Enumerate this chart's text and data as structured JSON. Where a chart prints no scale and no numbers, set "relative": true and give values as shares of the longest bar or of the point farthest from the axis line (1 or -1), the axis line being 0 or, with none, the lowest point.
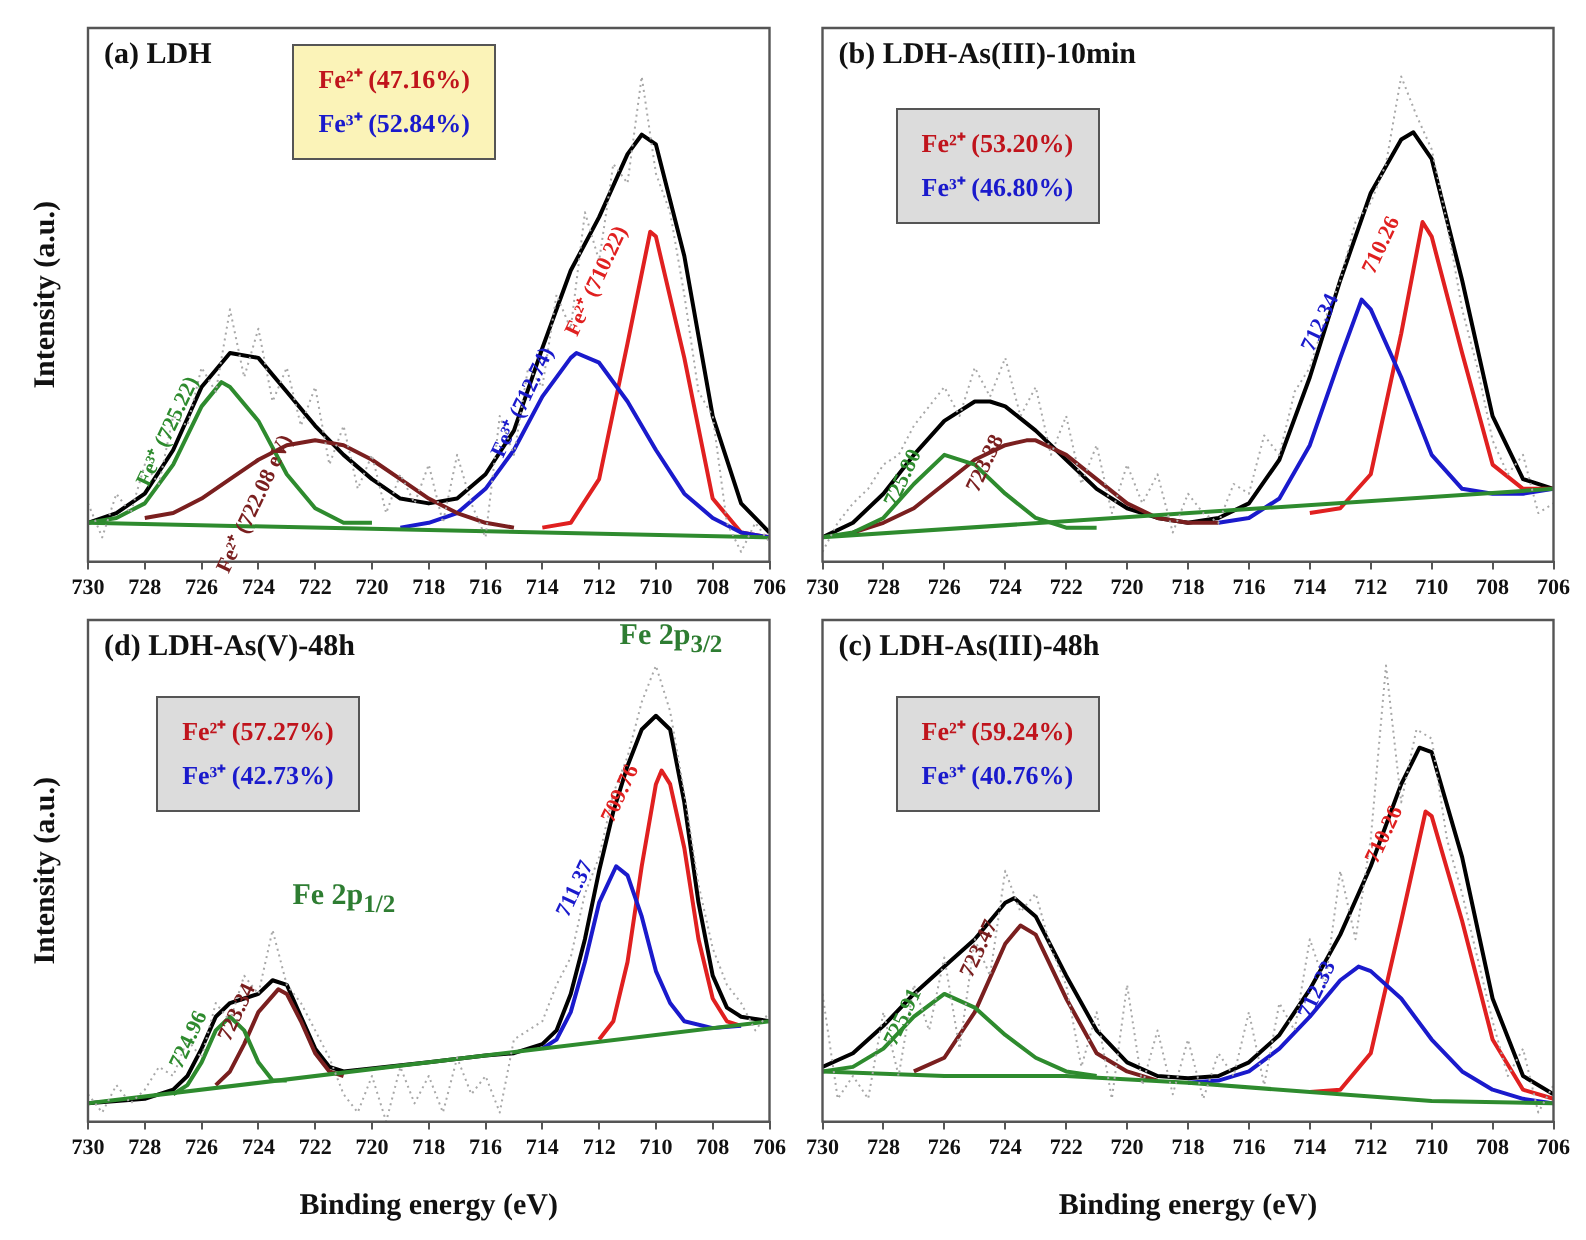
{
  "chart_data": [
    {
      "type": "line",
      "title": "(a) LDH",
      "ylabel": "Intensity (a.u.)",
      "relative": true,
      "xlim": [
        730,
        706
      ],
      "xticks": [
        730,
        728,
        726,
        724,
        722,
        720,
        718,
        716,
        714,
        712,
        710,
        708,
        706
      ],
      "marker": "none",
      "line_style": "solid",
      "annotations": [
        "Fe²⁺ (47.16%)",
        "Fe³⁺ (52.84%)"
      ],
      "series": [
        {
          "color": "#a8a8a8",
          "line_style": "dotted",
          "x": [
            730,
            729.5,
            729,
            728.5,
            728,
            727.5,
            727,
            726.5,
            726,
            725.5,
            725,
            724.5,
            724,
            723.5,
            723,
            722.5,
            722,
            721.5,
            721,
            720.5,
            720,
            719.5,
            719,
            718.5,
            718,
            717.5,
            717,
            716.5,
            716,
            715.5,
            715,
            714.5,
            714,
            713.5,
            713,
            712.5,
            712,
            711.5,
            711,
            710.5,
            710,
            709.5,
            709,
            708.5,
            708,
            707.5,
            707,
            706.5,
            706
          ],
          "values": [
            0.12,
            0.05,
            0.14,
            0.1,
            0.2,
            0.16,
            0.3,
            0.28,
            0.4,
            0.35,
            0.52,
            0.38,
            0.48,
            0.33,
            0.4,
            0.28,
            0.36,
            0.2,
            0.28,
            0.15,
            0.22,
            0.1,
            0.18,
            0.12,
            0.2,
            0.08,
            0.22,
            0.12,
            0.05,
            0.3,
            0.22,
            0.4,
            0.36,
            0.55,
            0.48,
            0.72,
            0.62,
            0.82,
            0.78,
            1.0,
            0.8,
            0.72,
            0.55,
            0.35,
            0.3,
            0.08,
            0.02,
            0.08,
            0.04
          ]
        },
        {
          "color": "#2e8b2e",
          "x": [
            730,
            706
          ],
          "values": [
            0.08,
            0.05
          ]
        },
        {
          "name": "Fe³⁺ (725.22)",
          "color": "#2e8b2e",
          "x": [
            730,
            729,
            728,
            727,
            726,
            725.3,
            725,
            724,
            723,
            722,
            721,
            720
          ],
          "values": [
            0.08,
            0.09,
            0.12,
            0.2,
            0.32,
            0.37,
            0.36,
            0.29,
            0.18,
            0.11,
            0.08,
            0.08
          ]
        },
        {
          "name": "Fe²⁺ (722.08 eV)",
          "color": "#7a1f1f",
          "x": [
            728,
            727,
            726,
            725,
            724,
            723,
            722,
            721,
            720,
            719,
            718,
            717,
            716,
            715
          ],
          "values": [
            0.09,
            0.1,
            0.13,
            0.17,
            0.21,
            0.24,
            0.25,
            0.24,
            0.21,
            0.17,
            0.13,
            0.1,
            0.08,
            0.07
          ]
        },
        {
          "name": "Fe³⁺ (712.74)",
          "color": "#1a1acc",
          "x": [
            719,
            718,
            717,
            716,
            715,
            714,
            713,
            712.8,
            712,
            711,
            710,
            709,
            708,
            707,
            706
          ],
          "values": [
            0.07,
            0.08,
            0.1,
            0.15,
            0.23,
            0.34,
            0.42,
            0.43,
            0.41,
            0.33,
            0.23,
            0.14,
            0.09,
            0.06,
            0.05
          ]
        },
        {
          "name": "Fe²⁺ (710.22)",
          "color": "#e02020",
          "x": [
            714,
            713,
            712,
            711,
            710.2,
            710,
            709,
            708,
            707,
            706
          ],
          "values": [
            0.07,
            0.08,
            0.17,
            0.45,
            0.68,
            0.67,
            0.42,
            0.13,
            0.06,
            0.05
          ]
        },
        {
          "color": "#000000",
          "x": [
            730,
            729,
            728,
            727,
            726,
            725,
            724,
            723,
            722,
            721,
            720,
            719,
            718,
            717,
            716,
            715,
            714,
            713,
            712,
            711,
            710.5,
            710,
            709,
            708,
            707,
            706
          ],
          "values": [
            0.08,
            0.1,
            0.14,
            0.23,
            0.36,
            0.43,
            0.42,
            0.35,
            0.28,
            0.22,
            0.17,
            0.13,
            0.12,
            0.13,
            0.18,
            0.27,
            0.44,
            0.6,
            0.71,
            0.84,
            0.88,
            0.86,
            0.63,
            0.3,
            0.12,
            0.06
          ]
        }
      ]
    },
    {
      "type": "line",
      "title": "(b) LDH-As(III)-10min",
      "relative": true,
      "xlim": [
        730,
        706
      ],
      "xticks": [
        730,
        728,
        726,
        724,
        722,
        720,
        718,
        716,
        714,
        712,
        710,
        708,
        706
      ],
      "marker": "none",
      "line_style": "solid",
      "annotations": [
        "Fe²⁺ (53.20%)",
        "Fe³⁺ (46.80%)"
      ],
      "series": [
        {
          "color": "#a8a8a8",
          "line_style": "dotted",
          "x": [
            730,
            729.5,
            729,
            728.5,
            728,
            727.5,
            727,
            726.5,
            726,
            725.5,
            725,
            724.5,
            724,
            723.5,
            723,
            722.5,
            722,
            721.5,
            721,
            720.5,
            720,
            719.5,
            719,
            718.5,
            718,
            717.5,
            717,
            716.5,
            716,
            715.5,
            715,
            714.5,
            714,
            713.5,
            713,
            712.5,
            712,
            711.5,
            711,
            710.5,
            710,
            709.5,
            709,
            708.5,
            708,
            707.5,
            707,
            706.5,
            706
          ],
          "values": [
            0.02,
            0.08,
            0.12,
            0.15,
            0.2,
            0.22,
            0.28,
            0.32,
            0.36,
            0.3,
            0.4,
            0.34,
            0.42,
            0.3,
            0.36,
            0.22,
            0.3,
            0.16,
            0.24,
            0.1,
            0.2,
            0.12,
            0.18,
            0.06,
            0.14,
            0.1,
            0.08,
            0.16,
            0.14,
            0.26,
            0.22,
            0.35,
            0.4,
            0.5,
            0.58,
            0.7,
            0.74,
            0.82,
            1.0,
            0.92,
            0.85,
            0.7,
            0.52,
            0.4,
            0.25,
            0.18,
            0.22,
            0.1,
            0.12
          ]
        },
        {
          "color": "#2e8b2e",
          "x": [
            730,
            706
          ],
          "values": [
            0.05,
            0.15
          ]
        },
        {
          "name": "725.80",
          "color": "#2e8b2e",
          "x": [
            730,
            729,
            728,
            727,
            726,
            725,
            724,
            723,
            722,
            721
          ],
          "values": [
            0.05,
            0.06,
            0.09,
            0.16,
            0.22,
            0.2,
            0.14,
            0.09,
            0.07,
            0.07
          ]
        },
        {
          "name": "723.38",
          "color": "#7a1f1f",
          "x": [
            729,
            728,
            727,
            726,
            725,
            724,
            723.3,
            723,
            722,
            721,
            720,
            719,
            718,
            717
          ],
          "values": [
            0.06,
            0.08,
            0.11,
            0.16,
            0.21,
            0.24,
            0.25,
            0.25,
            0.22,
            0.17,
            0.12,
            0.09,
            0.08,
            0.08
          ]
        },
        {
          "name": "712.34",
          "color": "#1a1acc",
          "x": [
            717,
            716,
            715,
            714,
            713,
            712.3,
            712,
            711,
            710,
            709,
            708,
            707,
            706
          ],
          "values": [
            0.08,
            0.09,
            0.13,
            0.24,
            0.42,
            0.54,
            0.52,
            0.38,
            0.22,
            0.15,
            0.14,
            0.14,
            0.15
          ]
        },
        {
          "name": "710.26",
          "color": "#e02020",
          "x": [
            714,
            713,
            712,
            711,
            710.3,
            710,
            709,
            708,
            707,
            706
          ],
          "values": [
            0.1,
            0.11,
            0.18,
            0.47,
            0.7,
            0.67,
            0.43,
            0.2,
            0.15,
            0.15
          ]
        },
        {
          "color": "#000000",
          "x": [
            730,
            729,
            728,
            727,
            726,
            725,
            724.5,
            724,
            723,
            722,
            721,
            720,
            719,
            718,
            717,
            716,
            715,
            714,
            713,
            712,
            711,
            710.6,
            710,
            709,
            708,
            707,
            706
          ],
          "values": [
            0.05,
            0.08,
            0.14,
            0.22,
            0.29,
            0.33,
            0.33,
            0.32,
            0.27,
            0.21,
            0.15,
            0.11,
            0.09,
            0.08,
            0.09,
            0.12,
            0.21,
            0.38,
            0.58,
            0.76,
            0.87,
            0.885,
            0.83,
            0.58,
            0.3,
            0.17,
            0.15
          ]
        }
      ]
    },
    {
      "type": "line",
      "title": "(d) LDH-As(V)-48h",
      "xlabel": "Binding energy (eV)",
      "ylabel": "Intensity (a.u.)",
      "relative": true,
      "xlim": [
        730,
        706
      ],
      "xticks": [
        730,
        728,
        726,
        724,
        722,
        720,
        718,
        716,
        714,
        712,
        710,
        708,
        706
      ],
      "marker": "none",
      "line_style": "solid",
      "annotations": [
        "Fe²⁺ (57.27%)",
        "Fe³⁺ (42.73%)",
        "Fe 2p$_{3/2}$",
        "Fe 2p$_{1/2}$"
      ],
      "series": [
        {
          "color": "#a8a8a8",
          "line_style": "dotted",
          "x": [
            730,
            729.5,
            729,
            728.5,
            728,
            727.5,
            727,
            726.5,
            726,
            725.5,
            725,
            724.5,
            724,
            723.5,
            723,
            722.5,
            722,
            721.5,
            721,
            720.5,
            720,
            719.5,
            719,
            718.5,
            718,
            717.5,
            717,
            716.5,
            716,
            715.5,
            715,
            714.5,
            714,
            713.5,
            713,
            712.5,
            712,
            711.5,
            711,
            710.5,
            710,
            709.5,
            709,
            708.5,
            708,
            707.5,
            707,
            706.5,
            706
          ],
          "values": [
            0.06,
            0.02,
            0.08,
            0.04,
            0.07,
            0.12,
            0.1,
            0.18,
            0.14,
            0.26,
            0.22,
            0.32,
            0.28,
            0.42,
            0.3,
            0.26,
            0.2,
            0.14,
            0.06,
            0.02,
            0.1,
            0.0,
            0.12,
            0.04,
            0.1,
            0.02,
            0.14,
            0.06,
            0.1,
            0.02,
            0.18,
            0.2,
            0.22,
            0.3,
            0.36,
            0.5,
            0.58,
            0.72,
            0.8,
            0.92,
            1.0,
            0.9,
            0.72,
            0.52,
            0.38,
            0.3,
            0.26,
            0.2,
            0.24
          ]
        },
        {
          "color": "#2e8b2e",
          "x": [
            730,
            706
          ],
          "values": [
            0.04,
            0.22
          ]
        },
        {
          "name": "724.96",
          "color": "#2e8b2e",
          "x": [
            727,
            726.5,
            726,
            725.5,
            725,
            724.5,
            724,
            723.5,
            723
          ],
          "values": [
            0.06,
            0.08,
            0.13,
            0.2,
            0.23,
            0.2,
            0.13,
            0.09,
            0.09
          ]
        },
        {
          "name": "723.34",
          "color": "#7a1f1f",
          "x": [
            725.5,
            725,
            724.5,
            724,
            723.3,
            723,
            722.5,
            722,
            721.5,
            721
          ],
          "values": [
            0.08,
            0.11,
            0.17,
            0.24,
            0.29,
            0.28,
            0.22,
            0.15,
            0.11,
            0.1
          ]
        },
        {
          "name": "711.37",
          "color": "#1a1acc",
          "x": [
            714,
            713.5,
            713,
            712.5,
            712,
            711.4,
            711,
            710.5,
            710,
            709.5,
            709,
            708,
            707
          ],
          "values": [
            0.16,
            0.18,
            0.24,
            0.35,
            0.48,
            0.56,
            0.54,
            0.45,
            0.33,
            0.26,
            0.22,
            0.205,
            0.21
          ]
        },
        {
          "name": "709.76",
          "color": "#e02020",
          "x": [
            712,
            711.5,
            711,
            710.5,
            710,
            709.8,
            709.5,
            709,
            708.5,
            708,
            707.5,
            707
          ],
          "values": [
            0.18,
            0.22,
            0.35,
            0.56,
            0.74,
            0.77,
            0.74,
            0.6,
            0.4,
            0.27,
            0.22,
            0.21
          ]
        },
        {
          "color": "#000000",
          "x": [
            730,
            728,
            727,
            726.5,
            726,
            725.5,
            725,
            724.5,
            724,
            723.5,
            723,
            722.5,
            722,
            721.5,
            721,
            718,
            716,
            715,
            714,
            713.5,
            713,
            712.5,
            712,
            711.5,
            711,
            710.5,
            710,
            709.5,
            709,
            708.5,
            708,
            707.5,
            707,
            706
          ],
          "values": [
            0.04,
            0.05,
            0.07,
            0.1,
            0.16,
            0.23,
            0.26,
            0.27,
            0.28,
            0.31,
            0.3,
            0.23,
            0.16,
            0.12,
            0.11,
            0.13,
            0.145,
            0.15,
            0.17,
            0.2,
            0.28,
            0.4,
            0.55,
            0.68,
            0.78,
            0.86,
            0.89,
            0.86,
            0.7,
            0.48,
            0.32,
            0.25,
            0.23,
            0.22
          ]
        }
      ]
    },
    {
      "type": "line",
      "title": "(c) LDH-As(III)-48h",
      "xlabel": "Binding energy (eV)",
      "relative": true,
      "xlim": [
        730,
        706
      ],
      "xticks": [
        730,
        728,
        726,
        724,
        722,
        720,
        718,
        716,
        714,
        712,
        710,
        708,
        706
      ],
      "marker": "none",
      "line_style": "solid",
      "annotations": [
        "Fe²⁺ (59.24%)",
        "Fe³⁺ (40.76%)"
      ],
      "series": [
        {
          "color": "#a8a8a8",
          "line_style": "dotted",
          "x": [
            730,
            729.5,
            729,
            728.5,
            728,
            727.5,
            727,
            726.5,
            726,
            725.5,
            725,
            724.5,
            724,
            723.5,
            723,
            722.5,
            722,
            721.5,
            721,
            720.5,
            720,
            719.5,
            719,
            718.5,
            718,
            717.5,
            717,
            716.5,
            716,
            715.5,
            715,
            714.5,
            714,
            713.5,
            713,
            712.5,
            712,
            711.5,
            711,
            710.5,
            710,
            709.5,
            709,
            708.5,
            708,
            707.5,
            707,
            706.5,
            706
          ],
          "values": [
            0.28,
            0.05,
            0.1,
            0.05,
            0.24,
            0.1,
            0.3,
            0.2,
            0.36,
            0.16,
            0.4,
            0.32,
            0.55,
            0.46,
            0.5,
            0.38,
            0.3,
            0.12,
            0.24,
            0.05,
            0.3,
            0.08,
            0.2,
            0.06,
            0.18,
            0.05,
            0.15,
            0.1,
            0.24,
            0.08,
            0.26,
            0.2,
            0.4,
            0.3,
            0.55,
            0.4,
            0.62,
            1.0,
            0.7,
            0.86,
            0.84,
            0.62,
            0.5,
            0.36,
            0.22,
            0.1,
            0.16,
            0.02,
            0.08
          ]
        },
        {
          "color": "#2e8b2e",
          "x": [
            730,
            726,
            722,
            718,
            714,
            710,
            706
          ],
          "values": [
            0.11,
            0.1,
            0.1,
            0.085,
            0.065,
            0.045,
            0.04
          ]
        },
        {
          "name": "725.91",
          "color": "#2e8b2e",
          "x": [
            730,
            729,
            728,
            727,
            726,
            725,
            724,
            723,
            722,
            721
          ],
          "values": [
            0.11,
            0.12,
            0.16,
            0.23,
            0.28,
            0.25,
            0.19,
            0.14,
            0.11,
            0.1
          ]
        },
        {
          "name": "723.47",
          "color": "#7a1f1f",
          "x": [
            727,
            726,
            725,
            724,
            723.5,
            723,
            722,
            721,
            720,
            719
          ],
          "values": [
            0.11,
            0.14,
            0.24,
            0.39,
            0.43,
            0.41,
            0.27,
            0.15,
            0.11,
            0.09
          ]
        },
        {
          "name": "712.33",
          "color": "#1a1acc",
          "x": [
            718,
            717,
            716,
            715,
            714,
            713,
            712.4,
            712,
            711,
            710,
            709,
            708,
            707,
            706
          ],
          "values": [
            0.085,
            0.09,
            0.11,
            0.16,
            0.23,
            0.31,
            0.34,
            0.33,
            0.27,
            0.18,
            0.11,
            0.07,
            0.05,
            0.04
          ]
        },
        {
          "name": "710.26",
          "color": "#e02020",
          "x": [
            714,
            713,
            712,
            711,
            710.2,
            710,
            709,
            708,
            707,
            706
          ],
          "values": [
            0.065,
            0.07,
            0.15,
            0.44,
            0.68,
            0.67,
            0.44,
            0.18,
            0.07,
            0.05
          ]
        },
        {
          "color": "#000000",
          "x": [
            730,
            729,
            728,
            727,
            726,
            725,
            724,
            723.7,
            723,
            722,
            721,
            720,
            719,
            718,
            717,
            716,
            715,
            714,
            713,
            712,
            711,
            710.4,
            710,
            709,
            708,
            707,
            706
          ],
          "values": [
            0.12,
            0.15,
            0.21,
            0.28,
            0.34,
            0.4,
            0.48,
            0.49,
            0.45,
            0.32,
            0.2,
            0.13,
            0.1,
            0.095,
            0.1,
            0.13,
            0.19,
            0.29,
            0.41,
            0.56,
            0.74,
            0.82,
            0.81,
            0.58,
            0.27,
            0.1,
            0.06
          ]
        }
      ]
    }
  ]
}
